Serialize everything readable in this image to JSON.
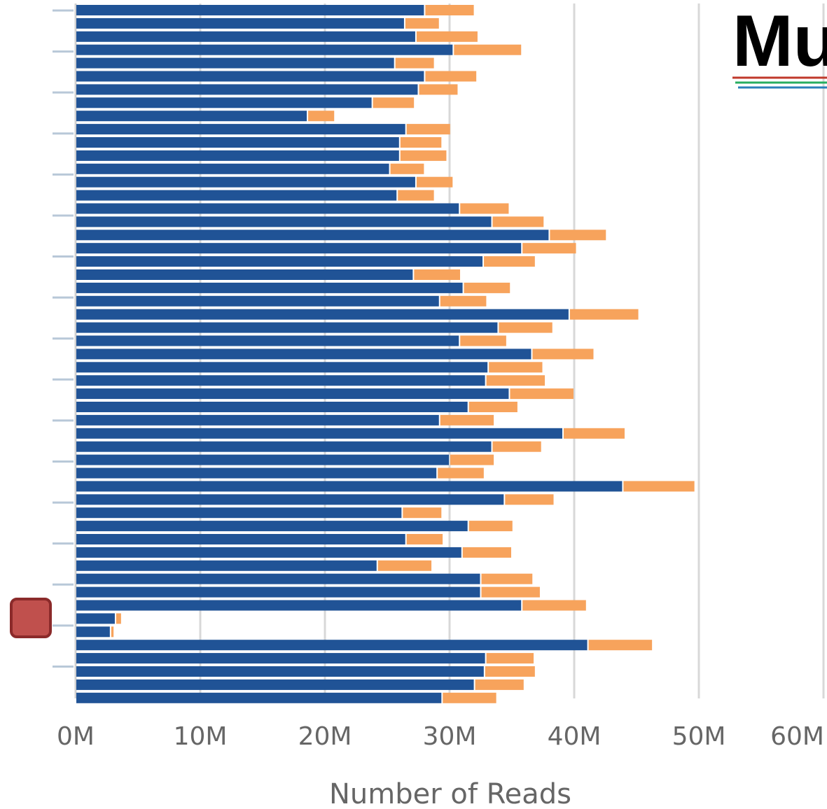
{
  "chart_data": {
    "type": "bar",
    "orientation": "horizontal",
    "stacked": true,
    "xlabel": "Number of Reads",
    "x_ticks": [
      "0M",
      "10M",
      "20M",
      "30M",
      "40M",
      "50M",
      "60M"
    ],
    "xlim": [
      0,
      60
    ],
    "unit": "M",
    "grid": true,
    "series": [
      {
        "color": "#205396",
        "values": [
          28.0,
          26.4,
          27.3,
          30.3,
          25.6,
          28.0,
          27.5,
          23.8,
          18.6,
          26.5,
          26.0,
          26.0,
          25.2,
          27.3,
          25.8,
          30.8,
          33.4,
          38.0,
          35.8,
          32.7,
          27.1,
          31.1,
          29.2,
          39.6,
          33.9,
          30.8,
          36.6,
          33.1,
          32.9,
          34.8,
          31.5,
          29.2,
          39.1,
          33.4,
          30.0,
          29.0,
          43.9,
          34.4,
          26.2,
          31.5,
          26.5,
          31.0,
          24.2,
          32.5,
          32.5,
          35.8,
          3.2,
          2.8,
          41.1,
          32.9,
          32.8,
          32.0,
          29.4
        ],
        "labels": []
      },
      {
        "color": "#f7a35c",
        "values": [
          4.0,
          2.8,
          5.0,
          5.5,
          3.2,
          4.2,
          3.2,
          3.4,
          2.2,
          3.6,
          3.4,
          3.8,
          2.8,
          3.0,
          3.0,
          4.0,
          4.2,
          4.6,
          4.4,
          4.2,
          3.8,
          3.8,
          3.8,
          5.6,
          4.4,
          3.8,
          5.0,
          4.4,
          4.8,
          5.2,
          4.0,
          4.4,
          5.0,
          4.0,
          3.6,
          3.8,
          5.8,
          4.0,
          3.2,
          3.6,
          3.0,
          4.0,
          4.4,
          4.2,
          4.8,
          5.2,
          0.5,
          0.3,
          5.2,
          3.9,
          4.1,
          4.0,
          4.4
        ],
        "labels": []
      }
    ]
  },
  "logo": {
    "text": "Mu",
    "stripe_colors": [
      "#c0392b",
      "#27ae60",
      "#2980b9"
    ]
  },
  "marker": {
    "color": "#c0504d"
  }
}
